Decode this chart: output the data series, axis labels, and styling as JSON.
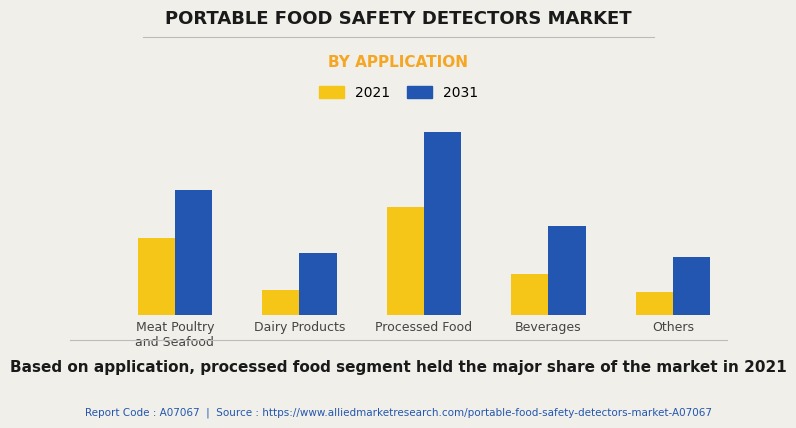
{
  "title": "PORTABLE FOOD SAFETY DETECTORS MARKET",
  "subtitle": "BY APPLICATION",
  "categories": [
    "Meat Poultry\nand Seafood",
    "Dairy Products",
    "Processed Food",
    "Beverages",
    "Others"
  ],
  "values_2021": [
    0.37,
    0.12,
    0.52,
    0.2,
    0.11
  ],
  "values_2031": [
    0.6,
    0.3,
    0.88,
    0.43,
    0.28
  ],
  "color_2021": "#F5C518",
  "color_2031": "#2356B0",
  "legend_labels": [
    "2021",
    "2031"
  ],
  "background_color": "#F0EFE9",
  "title_color": "#1a1a1a",
  "subtitle_color": "#F5A623",
  "footer_text": "Based on application, processed food segment held the major share of the market in 2021",
  "source_text": "Report Code : A07067  |  Source : https://www.alliedmarketresearch.com/portable-food-safety-detectors-market-A07067",
  "source_color": "#2356B0",
  "ylim": [
    0,
    1.0
  ],
  "bar_width": 0.3,
  "title_fontsize": 13,
  "subtitle_fontsize": 11,
  "footer_fontsize": 11,
  "source_fontsize": 7.5,
  "tick_fontsize": 9,
  "legend_fontsize": 10
}
